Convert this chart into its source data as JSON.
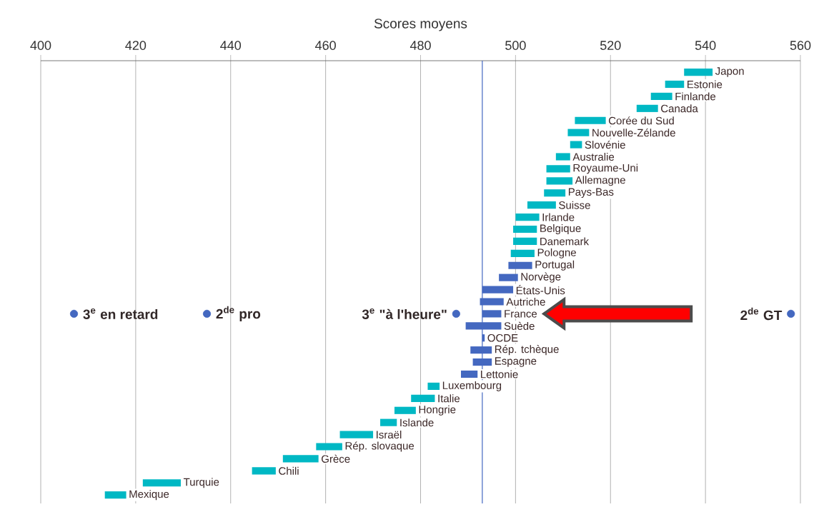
{
  "chart_data": {
    "type": "bar",
    "orientation": "horizontal",
    "xlabel": "Scores moyens",
    "categories": [
      "Japon",
      "Estonie",
      "Finlande",
      "Canada",
      "Corée du Sud",
      "Nouvelle-Zélande",
      "Slovénie",
      "Australie",
      "Royaume-Uni",
      "Allemagne",
      "Pays-Bas",
      "Suisse",
      "Irlande",
      "Belgique",
      "Danemark",
      "Pologne",
      "Portugal",
      "Norvège",
      "États-Unis",
      "Autriche",
      "France",
      "Suède",
      "OCDE",
      "Rép. tchèque",
      "Espagne",
      "Lettonie",
      "Luxembourg",
      "Italie",
      "Hongrie",
      "Islande",
      "Israël",
      "Rép. slovaque",
      "Grèce",
      "Chili",
      "Turquie",
      "Mexique"
    ],
    "series": [
      {
        "base": [
          535.5,
          531.5,
          528.5,
          525.5,
          512.5,
          511,
          511.5,
          508.5,
          506.5,
          506.5,
          506,
          502.5,
          500,
          499.5,
          499.5,
          499,
          498.5,
          496.5,
          493,
          492.5,
          493,
          489.5,
          493,
          490.5,
          491,
          488.5,
          481.5,
          478,
          474.5,
          471.5,
          463,
          458,
          451,
          444.5,
          421.5,
          413.5
        ],
        "values": [
          6,
          4,
          4.5,
          4.5,
          6.5,
          4.5,
          2.5,
          3,
          5,
          5.5,
          4.5,
          6,
          5,
          5,
          5,
          5,
          5,
          4,
          6.5,
          5,
          4,
          7.5,
          0.5,
          4.5,
          4,
          3.5,
          2.5,
          5,
          4.5,
          3.5,
          7,
          5.5,
          7.5,
          5,
          8,
          4.5
        ],
        "colors": [
          "#00b8c4",
          "#00b8c4",
          "#00b8c4",
          "#00b8c4",
          "#00b8c4",
          "#00b8c4",
          "#00b8c4",
          "#00b8c4",
          "#00b8c4",
          "#00b8c4",
          "#00b8c4",
          "#00b8c4",
          "#00b8c4",
          "#00b8c4",
          "#00b8c4",
          "#00b8c4",
          "#4468c0",
          "#4468c0",
          "#4468c0",
          "#4468c0",
          "#4468c0",
          "#4468c0",
          "#4468c0",
          "#4468c0",
          "#4468c0",
          "#4468c0",
          "#00b8c4",
          "#00b8c4",
          "#00b8c4",
          "#00b8c4",
          "#00b8c4",
          "#00b8c4",
          "#00b8c4",
          "#00b8c4",
          "#00b8c4",
          "#00b8c4"
        ]
      }
    ],
    "annotations": [
      {
        "text": "3$^{e}$ en retard",
        "x": 407,
        "y": "France"
      },
      {
        "text": "2$^{de}$ pro",
        "x": 435,
        "y": "France"
      },
      {
        "text": "3$^{e}$ \"à l'heure\"",
        "x": 487.5,
        "y": "France"
      },
      {
        "text": "2$^{de}$ GT",
        "x": 558,
        "y": "France"
      }
    ],
    "ref_lines": [
      {
        "axis": "x",
        "value": 493,
        "color": "#4468c0"
      }
    ],
    "xlim": [
      400,
      560
    ],
    "xticks": [
      400,
      420,
      440,
      460,
      480,
      500,
      520,
      540,
      560
    ],
    "grid": "x"
  }
}
